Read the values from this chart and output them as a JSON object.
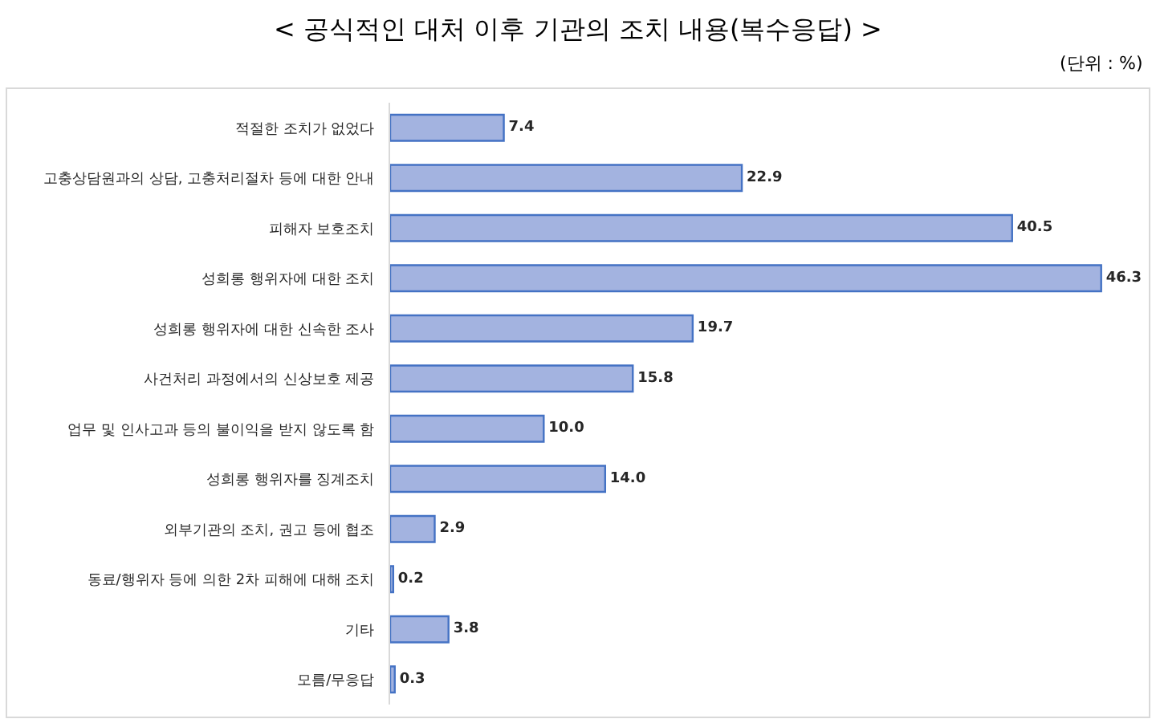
{
  "chart_data": {
    "type": "bar",
    "orientation": "horizontal",
    "title": "< 공식적인 대처 이후 기관의 조치 내용(복수응답) >",
    "annotations": [
      "(단위 : %)"
    ],
    "categories": [
      "적절한 조치가 없었다",
      "고충상담원과의 상담, 고충처리절차 등에 대한 안내",
      "피해자 보호조치",
      "성희롱 행위자에 대한 조치",
      "성희롱 행위자에 대한 신속한 조사",
      "사건처리 과정에서의 신상보호 제공",
      "업무 및 인사고과 등의 불이익을 받지 않도록 함",
      "성희롱 행위자를 징계조치",
      "외부기관의 조치, 권고 등에 협조",
      "동료/행위자 등에 의한 2차 피해에 대해 조치",
      "기타",
      "모름/무응답"
    ],
    "values": [
      7.4,
      22.9,
      40.5,
      46.3,
      19.7,
      15.8,
      10.0,
      14.0,
      2.9,
      0.2,
      3.8,
      0.3
    ],
    "value_labels": [
      "7.4",
      "22.9",
      "40.5",
      "46.3",
      "19.7",
      "15.8",
      "10.0",
      "14.0",
      "2.9",
      "0.2",
      "3.8",
      "0.3"
    ],
    "color": "#a3b3e0"
  }
}
